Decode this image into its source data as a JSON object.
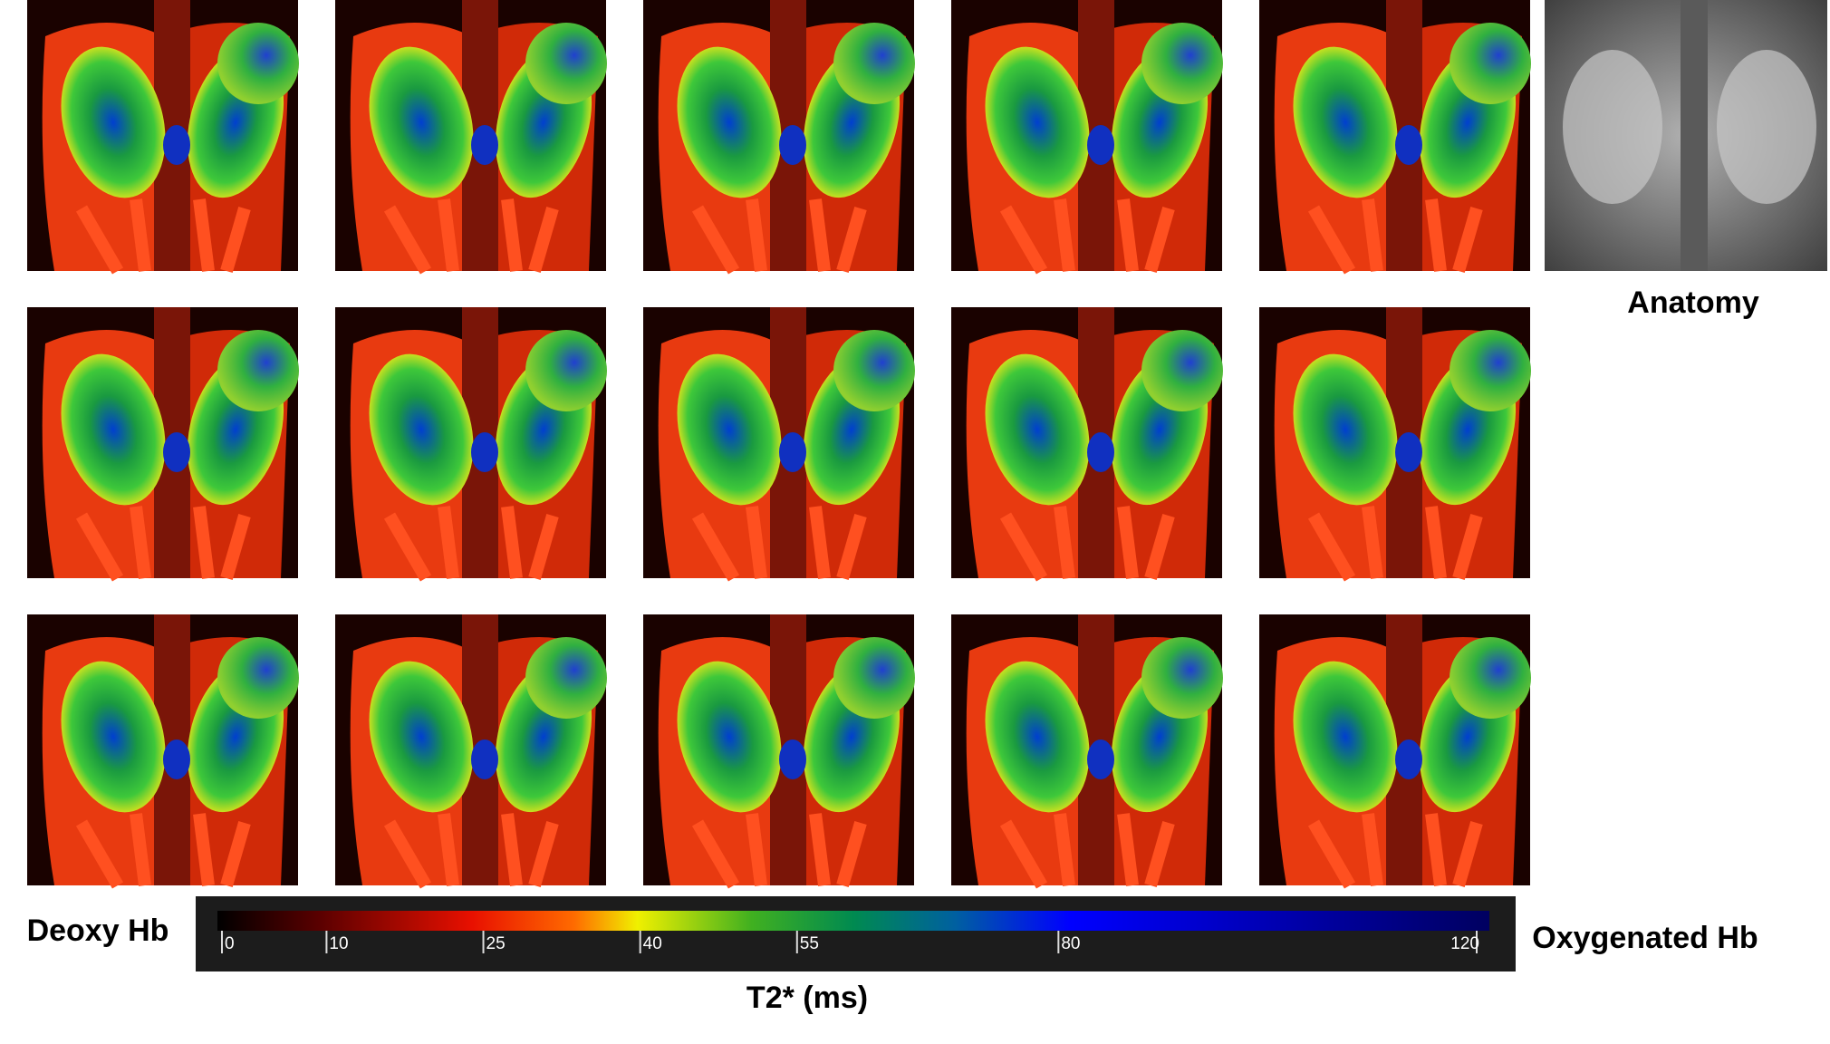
{
  "anatomy_label": "Anatomy",
  "colorbar": {
    "left_label": "Deoxy Hb",
    "right_label": "Oxygenated Hb",
    "title": "T2* (ms)",
    "lim": [
      0,
      120
    ],
    "ticks": [
      0,
      10,
      25,
      40,
      55,
      80,
      120
    ]
  }
}
